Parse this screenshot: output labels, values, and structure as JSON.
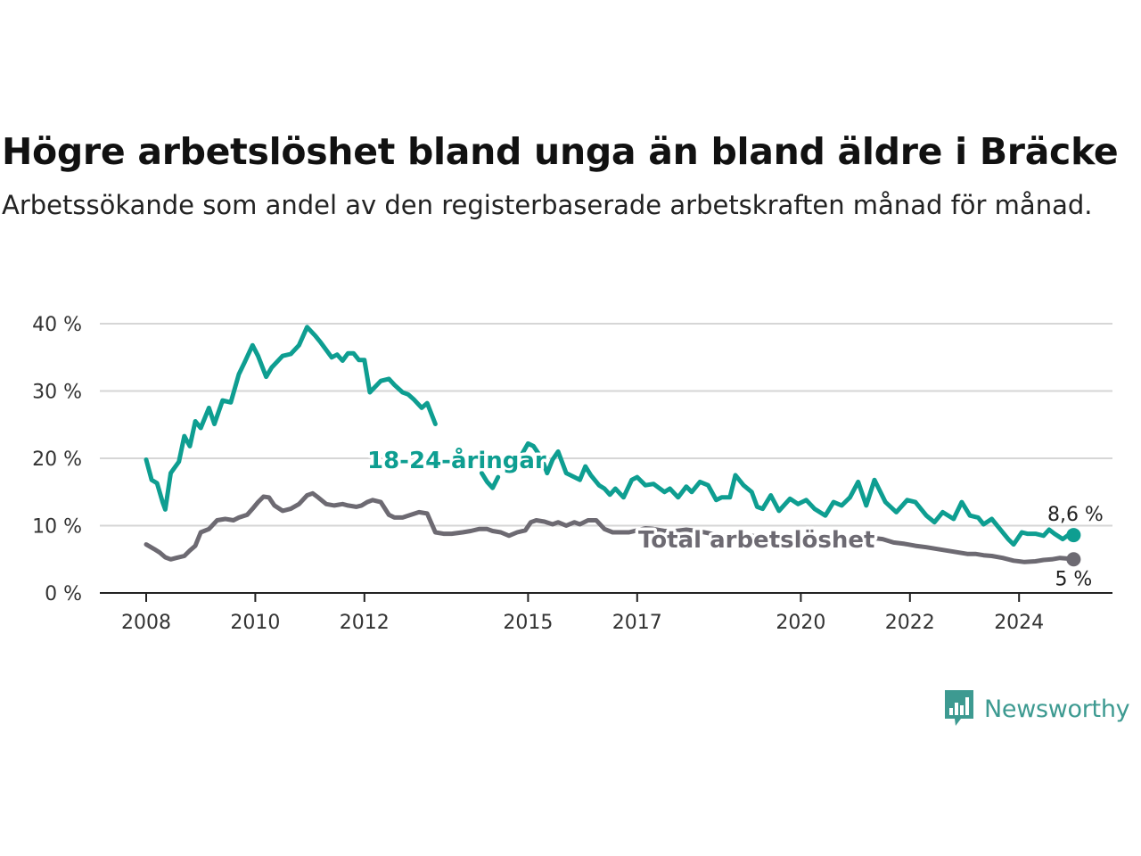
{
  "title": "Högre arbetslöshet bland unga än bland äldre i Bräcke",
  "subtitle": "Arbetssökande som andel av den registerbaserade arbetskraften månad för månad.",
  "logo": {
    "text": "Newsworthy",
    "icon": "bar-chart-speech-bubble-icon",
    "color": "#3d9a91"
  },
  "chart_data": {
    "type": "line",
    "xlabel": "",
    "ylabel": "",
    "xlim": [
      2008.0,
      2025.0
    ],
    "ylim": [
      0,
      40
    ],
    "x_ticks": [
      2008,
      2010,
      2012,
      2015,
      2017,
      2020,
      2022,
      2024
    ],
    "y_ticks": [
      {
        "value": 0,
        "label": "0 %"
      },
      {
        "value": 10,
        "label": "10 %"
      },
      {
        "value": 20,
        "label": "20 %"
      },
      {
        "value": 30,
        "label": "30 %"
      },
      {
        "value": 40,
        "label": "40 %"
      }
    ],
    "grid": "horizontal",
    "legend": "inline",
    "series": [
      {
        "name": "18-24-åringar",
        "color": "#0e9e91",
        "end_label": "8,6 %",
        "x": [
          2008.0,
          2008.1,
          2008.2,
          2008.3,
          2008.35,
          2008.45,
          2008.6,
          2008.7,
          2008.8,
          2008.9,
          2009.0,
          2009.15,
          2009.25,
          2009.4,
          2009.55,
          2009.7,
          2009.8,
          2009.95,
          2010.05,
          2010.2,
          2010.3,
          2010.5,
          2010.65,
          2010.8,
          2010.95,
          2011.1,
          2011.2,
          2011.4,
          2011.5,
          2011.6,
          2011.7,
          2011.8,
          2011.9,
          2012.0,
          2012.1,
          2012.3,
          2012.45,
          2012.55,
          2012.7,
          2012.8,
          2012.9,
          2013.05,
          2013.15,
          2013.3,
          null,
          2014.15,
          2014.25,
          2014.35,
          2014.45,
          null,
          2014.9,
          2015.0,
          2015.1,
          2015.25,
          2015.35,
          2015.45,
          2015.55,
          2015.7,
          2015.85,
          2015.95,
          2016.05,
          2016.15,
          2016.3,
          2016.4,
          2016.5,
          2016.6,
          2016.75,
          2016.9,
          2017.0,
          2017.15,
          2017.3,
          2017.5,
          2017.6,
          2017.75,
          2017.9,
          2018.0,
          2018.15,
          2018.3,
          2018.45,
          2018.55,
          2018.7,
          2018.8,
          2018.95,
          2019.1,
          2019.2,
          2019.3,
          2019.45,
          2019.6,
          2019.8,
          2019.95,
          2020.1,
          2020.25,
          2020.45,
          2020.6,
          2020.75,
          2020.9,
          2021.05,
          2021.2,
          2021.35,
          2021.55,
          2021.75,
          2021.95,
          2022.1,
          2022.3,
          2022.45,
          2022.6,
          2022.8,
          2022.95,
          2023.1,
          2023.25,
          2023.35,
          2023.5,
          2023.65,
          2023.8,
          2023.9,
          2024.05,
          2024.15,
          2024.3,
          2024.45,
          2024.55,
          2024.65,
          2024.8,
          2024.9,
          2025.0
        ],
        "y": [
          19.8,
          16.8,
          16.3,
          13.5,
          12.4,
          17.8,
          19.5,
          23.3,
          21.8,
          25.5,
          24.5,
          27.5,
          25.1,
          28.6,
          28.3,
          32.5,
          34.2,
          36.8,
          35.2,
          32.1,
          33.5,
          35.2,
          35.5,
          36.8,
          39.5,
          38.2,
          37.2,
          35.0,
          35.4,
          34.5,
          35.6,
          35.6,
          34.6,
          34.6,
          29.8,
          31.5,
          31.8,
          30.9,
          29.8,
          29.5,
          28.8,
          27.5,
          28.2,
          25.1,
          null,
          17.8,
          16.5,
          15.6,
          17.2,
          null,
          20.8,
          22.2,
          21.8,
          20.0,
          17.8,
          19.8,
          21.0,
          17.8,
          17.2,
          16.8,
          18.8,
          17.5,
          16.0,
          15.5,
          14.6,
          15.5,
          14.2,
          16.8,
          17.2,
          16.0,
          16.2,
          15.0,
          15.5,
          14.2,
          15.8,
          15.0,
          16.5,
          16.0,
          13.8,
          14.2,
          14.2,
          17.5,
          16.0,
          15.0,
          12.8,
          12.5,
          14.5,
          12.2,
          14.0,
          13.2,
          13.8,
          12.5,
          11.5,
          13.5,
          13.0,
          14.2,
          16.5,
          13.0,
          16.8,
          13.5,
          12.0,
          13.8,
          13.5,
          11.5,
          10.5,
          12.0,
          11.0,
          13.5,
          11.5,
          11.2,
          10.2,
          11.0,
          9.5,
          8.0,
          7.2,
          9.0,
          8.8,
          8.8,
          8.5,
          9.4,
          8.8,
          8.0,
          8.6,
          8.6
        ]
      },
      {
        "name": "Total arbetslöshet",
        "color": "#6d6a72",
        "end_label": "5 %",
        "x": [
          2008.0,
          2008.15,
          2008.25,
          2008.35,
          2008.45,
          2008.55,
          2008.7,
          2008.8,
          2008.9,
          2009.0,
          2009.15,
          2009.3,
          2009.45,
          2009.6,
          2009.7,
          2009.85,
          2009.95,
          2010.05,
          2010.15,
          2010.25,
          2010.35,
          2010.5,
          2010.65,
          2010.8,
          2010.95,
          2011.05,
          2011.15,
          2011.3,
          2011.45,
          2011.6,
          2011.7,
          2011.85,
          2011.95,
          2012.05,
          2012.15,
          2012.3,
          2012.45,
          2012.55,
          2012.7,
          2012.85,
          2013.0,
          2013.15,
          2013.3,
          2013.45,
          2013.6,
          2013.8,
          2013.95,
          2014.1,
          2014.25,
          2014.35,
          2014.5,
          2014.65,
          2014.8,
          2014.95,
          2015.05,
          2015.15,
          2015.3,
          2015.45,
          2015.55,
          2015.7,
          2015.85,
          2015.95,
          2016.1,
          2016.25,
          2016.4,
          2016.55,
          2016.7,
          2016.85,
          2017.0,
          2017.15,
          2017.3,
          2017.5,
          2017.7,
          2017.9,
          2018.1,
          2018.3,
          2018.5,
          2018.7,
          2018.9,
          2019.1,
          2019.3,
          2019.5,
          2019.7,
          2019.9,
          2020.1,
          2020.3,
          2020.5,
          2020.7,
          2020.9,
          2021.1,
          2021.3,
          2021.5,
          2021.7,
          2021.9,
          2022.1,
          2022.3,
          2022.45,
          2022.6,
          2022.75,
          2022.9,
          2023.05,
          2023.2,
          2023.35,
          2023.5,
          2023.7,
          2023.9,
          2024.1,
          2024.3,
          2024.45,
          2024.6,
          2024.75,
          2024.9,
          2025.0
        ],
        "y": [
          7.2,
          6.5,
          6.0,
          5.3,
          5.0,
          5.2,
          5.5,
          6.3,
          7.0,
          9.0,
          9.5,
          10.8,
          11.0,
          10.8,
          11.2,
          11.6,
          12.5,
          13.5,
          14.3,
          14.2,
          13.0,
          12.2,
          12.5,
          13.2,
          14.5,
          14.8,
          14.2,
          13.2,
          13.0,
          13.2,
          13.0,
          12.8,
          13.0,
          13.5,
          13.8,
          13.5,
          11.6,
          11.2,
          11.2,
          11.6,
          12.0,
          11.8,
          9.0,
          8.8,
          8.8,
          9.0,
          9.2,
          9.5,
          9.5,
          9.2,
          9.0,
          8.5,
          9.0,
          9.3,
          10.5,
          10.8,
          10.6,
          10.2,
          10.5,
          10.0,
          10.5,
          10.2,
          10.8,
          10.8,
          9.5,
          9.0,
          9.0,
          9.0,
          9.3,
          9.6,
          9.5,
          9.2,
          9.2,
          9.4,
          9.2,
          8.9,
          8.5,
          8.4,
          8.4,
          8.5,
          8.2,
          8.0,
          8.2,
          8.0,
          8.3,
          8.0,
          7.8,
          7.6,
          8.0,
          8.4,
          8.2,
          8.0,
          7.5,
          7.3,
          7.0,
          6.8,
          6.6,
          6.4,
          6.2,
          6.0,
          5.8,
          5.8,
          5.6,
          5.5,
          5.2,
          4.8,
          4.6,
          4.7,
          4.9,
          5.0,
          5.2,
          5.1,
          5.0
        ]
      }
    ]
  }
}
